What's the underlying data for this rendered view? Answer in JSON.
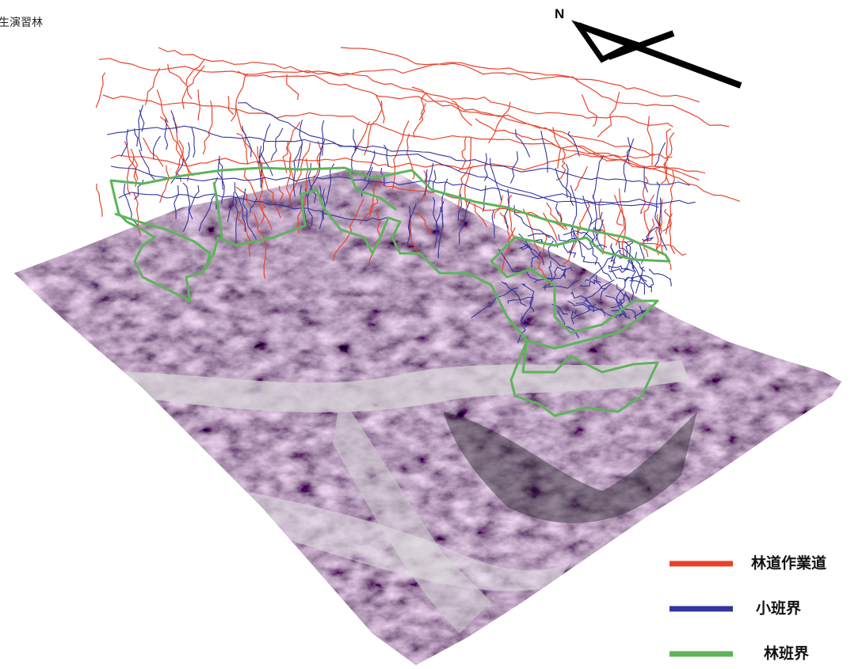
{
  "title": "生演習林",
  "north_label": "N",
  "legend": [
    {
      "label": "林道作業道",
      "color": "#e8432a"
    },
    {
      "label": "小班界",
      "color": "#34349e"
    },
    {
      "label": "林班界",
      "color": "#5db45a"
    }
  ]
}
